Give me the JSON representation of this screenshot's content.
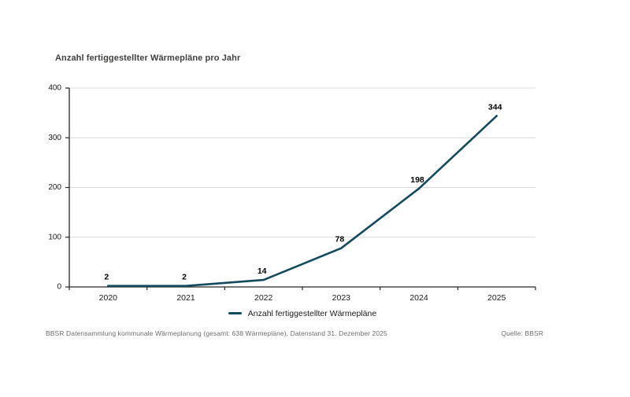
{
  "header": {
    "title": "Anzahl fertiggestellter Wärmepläne pro Jahr"
  },
  "chart_data": {
    "type": "line",
    "title": "Anzahl fertiggestellter Wärmepläne pro Jahr",
    "categories": [
      "2020",
      "2021",
      "2022",
      "2023",
      "2024",
      "2025"
    ],
    "series": [
      {
        "name": "Anzahl fertiggestellter Wärmepläne",
        "values": [
          2,
          2,
          14,
          78,
          198,
          344
        ]
      }
    ],
    "data_labels": [
      "2",
      "2",
      "14",
      "78",
      "198",
      "344"
    ],
    "xlabel": "",
    "ylabel": "",
    "ylim": [
      0,
      400
    ],
    "yticks": [
      0,
      100,
      200,
      300,
      400
    ],
    "grid": true,
    "legend_position": "bottom-center"
  },
  "legend": {
    "label": "Anzahl fertiggestellter Wärmepläne"
  },
  "footer": {
    "left": "BBSR Datensammlung kommunale Wärmeplanung (gesamt: 638 Wärmepläne), Datenstand 31. Dezember 2025",
    "right": "Quelle: BBSR"
  },
  "colors": {
    "line": "#124a5e",
    "grid": "#d9d9d9",
    "axis": "#262626",
    "tick_label": "#1a1a1a",
    "data_label": "#000000",
    "title": "#3f3f3e",
    "footer_text": "#6e6e6d"
  }
}
